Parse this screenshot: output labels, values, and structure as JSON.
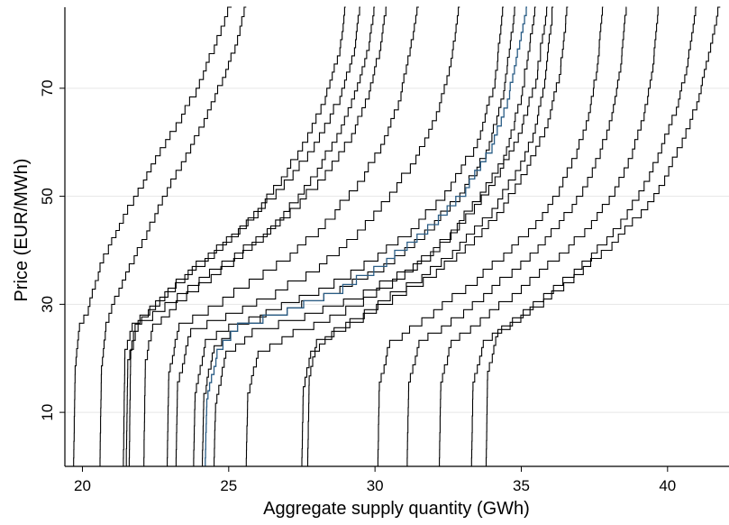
{
  "chart_data": {
    "type": "line",
    "xlabel": "Aggregate supply quantity (GWh)",
    "ylabel": "Price (EUR/MWh)",
    "xlim": [
      19.4,
      42.1
    ],
    "ylim": [
      0,
      85
    ],
    "xticks": [
      20,
      25,
      30,
      35,
      40
    ],
    "yticks": [
      10,
      30,
      50,
      70
    ],
    "grid": "horizontal",
    "legend": "none",
    "line_color": "#000000",
    "highlight_color": "#2a5d86",
    "series": [
      {
        "x": [
          19.7,
          19.75,
          19.9,
          20.2,
          20.6,
          21.0,
          21.4,
          21.9,
          22.5,
          23.2,
          24.0,
          24.6,
          25.1
        ],
        "y": [
          0,
          17,
          25,
          28,
          36,
          41,
          45,
          50,
          56,
          62,
          70,
          78,
          85
        ]
      },
      {
        "x": [
          20.6,
          20.65,
          20.8,
          21.1,
          21.6,
          22.2,
          22.9,
          23.7,
          24.4,
          24.9,
          25.3,
          25.6
        ],
        "y": [
          0,
          17,
          25,
          30,
          36,
          42,
          50,
          58,
          66,
          72,
          78,
          85
        ]
      },
      {
        "x": [
          21.4,
          21.45,
          21.7,
          22.3,
          23.2,
          24.3,
          25.6,
          26.8,
          27.7,
          28.3,
          28.8,
          29.0
        ],
        "y": [
          0,
          20,
          25,
          28,
          33,
          38,
          44,
          52,
          60,
          67,
          76,
          85
        ]
      },
      {
        "x": [
          21.5,
          21.55,
          21.8,
          22.5,
          23.5,
          24.8,
          26.0,
          27.2,
          28.1,
          28.8,
          29.3,
          29.5
        ],
        "y": [
          0,
          18,
          25,
          29,
          34,
          40,
          46,
          53,
          60,
          67,
          76,
          85
        ]
      },
      {
        "x": [
          21.6,
          21.65,
          21.9,
          22.4,
          23.6,
          25.2,
          26.6,
          27.8,
          28.7,
          29.3,
          29.8,
          30.0
        ],
        "y": [
          0,
          20,
          25,
          27,
          32,
          38,
          44,
          52,
          60,
          68,
          77,
          85
        ]
      },
      {
        "x": [
          22.1,
          22.15,
          22.4,
          23.2,
          24.4,
          25.8,
          27.1,
          28.3,
          29.2,
          29.8,
          30.2,
          30.4
        ],
        "y": [
          0,
          18,
          25,
          29,
          34,
          40,
          46,
          53,
          60,
          68,
          77,
          85
        ]
      },
      {
        "x": [
          22.9,
          22.95,
          23.3,
          24.3,
          25.7,
          27.1,
          28.3,
          29.4,
          30.2,
          30.8,
          31.2,
          31.5
        ],
        "y": [
          0,
          16,
          25,
          28,
          33,
          38,
          44,
          51,
          58,
          66,
          76,
          85
        ]
      },
      {
        "x": [
          23.2,
          23.25,
          23.7,
          24.9,
          26.6,
          28.1,
          29.4,
          30.5,
          31.4,
          32.1,
          32.6,
          32.9
        ],
        "y": [
          0,
          14,
          24,
          27,
          31,
          36,
          42,
          49,
          56,
          64,
          74,
          85
        ]
      },
      {
        "x": [
          23.8,
          23.85,
          24.2,
          25.0,
          26.8,
          28.6,
          30.1,
          31.5,
          32.6,
          33.5,
          34.1,
          34.4
        ],
        "y": [
          0,
          12,
          22,
          25,
          29,
          33,
          38,
          44,
          51,
          59,
          70,
          85
        ]
      },
      {
        "x": [
          24.1,
          24.15,
          24.5,
          25.3,
          27.0,
          28.8,
          30.3,
          31.7,
          32.9,
          33.8,
          34.4,
          34.8
        ],
        "y": [
          0,
          12,
          21,
          25,
          28,
          32,
          36,
          42,
          49,
          57,
          68,
          85
        ]
      },
      {
        "x": [
          24.5,
          24.55,
          24.9,
          25.8,
          27.6,
          29.6,
          31.3,
          32.6,
          33.6,
          34.4,
          35.0,
          35.5
        ],
        "y": [
          0,
          10,
          20,
          24,
          27,
          31,
          36,
          42,
          49,
          56,
          67,
          85
        ]
      },
      {
        "x": [
          25.6,
          25.65,
          26.0,
          27.2,
          29.0,
          30.6,
          31.9,
          33.1,
          34.1,
          34.9,
          35.5,
          35.9
        ],
        "y": [
          0,
          12,
          20,
          24,
          28,
          33,
          38,
          45,
          52,
          60,
          70,
          85
        ]
      },
      {
        "x": [
          27.5,
          27.55,
          27.8,
          28.6,
          30.1,
          31.6,
          32.9,
          34.0,
          34.8,
          35.4,
          35.8,
          36.1
        ],
        "y": [
          0,
          13,
          20,
          24,
          29,
          34,
          40,
          46,
          53,
          60,
          70,
          85
        ]
      },
      {
        "x": [
          27.7,
          27.75,
          28.0,
          29.0,
          30.6,
          32.1,
          33.4,
          34.4,
          35.2,
          35.8,
          36.3,
          36.6
        ],
        "y": [
          0,
          15,
          22,
          25,
          30,
          35,
          41,
          47,
          54,
          61,
          71,
          85
        ]
      },
      {
        "x": [
          30.1,
          30.15,
          30.5,
          31.6,
          33.1,
          34.4,
          35.5,
          36.3,
          36.9,
          37.3,
          37.6,
          37.8
        ],
        "y": [
          0,
          14,
          22,
          26,
          32,
          38,
          44,
          50,
          57,
          64,
          73,
          85
        ]
      },
      {
        "x": [
          31.1,
          31.15,
          31.5,
          32.6,
          34.0,
          35.3,
          36.3,
          37.1,
          37.7,
          38.1,
          38.4,
          38.6
        ],
        "y": [
          0,
          14,
          22,
          26,
          32,
          38,
          44,
          50,
          57,
          64,
          73,
          85
        ]
      },
      {
        "x": [
          32.2,
          32.25,
          32.6,
          33.6,
          35.0,
          36.3,
          37.4,
          38.2,
          38.8,
          39.2,
          39.5,
          39.7
        ],
        "y": [
          0,
          14,
          22,
          26,
          32,
          38,
          44,
          50,
          57,
          64,
          73,
          85
        ]
      },
      {
        "x": [
          33.3,
          33.35,
          33.7,
          34.7,
          36.1,
          37.4,
          38.4,
          39.2,
          39.8,
          40.3,
          40.7,
          41.0
        ],
        "y": [
          0,
          14,
          22,
          26,
          32,
          38,
          44,
          51,
          58,
          65,
          74,
          85
        ]
      },
      {
        "x": [
          33.8,
          33.85,
          34.2,
          35.3,
          36.8,
          38.1,
          39.1,
          39.9,
          40.5,
          41.0,
          41.4,
          41.8
        ],
        "y": [
          0,
          16,
          24,
          28,
          34,
          40,
          46,
          52,
          59,
          66,
          75,
          85
        ]
      },
      {
        "x": [
          24.2,
          24.25,
          24.6,
          25.3,
          27.0,
          28.9,
          30.4,
          31.8,
          33.1,
          34.0,
          34.6,
          35.2
        ],
        "y": [
          0,
          11,
          20,
          25,
          28,
          32,
          37,
          43,
          50,
          58,
          68,
          85
        ],
        "highlight": true
      }
    ]
  }
}
